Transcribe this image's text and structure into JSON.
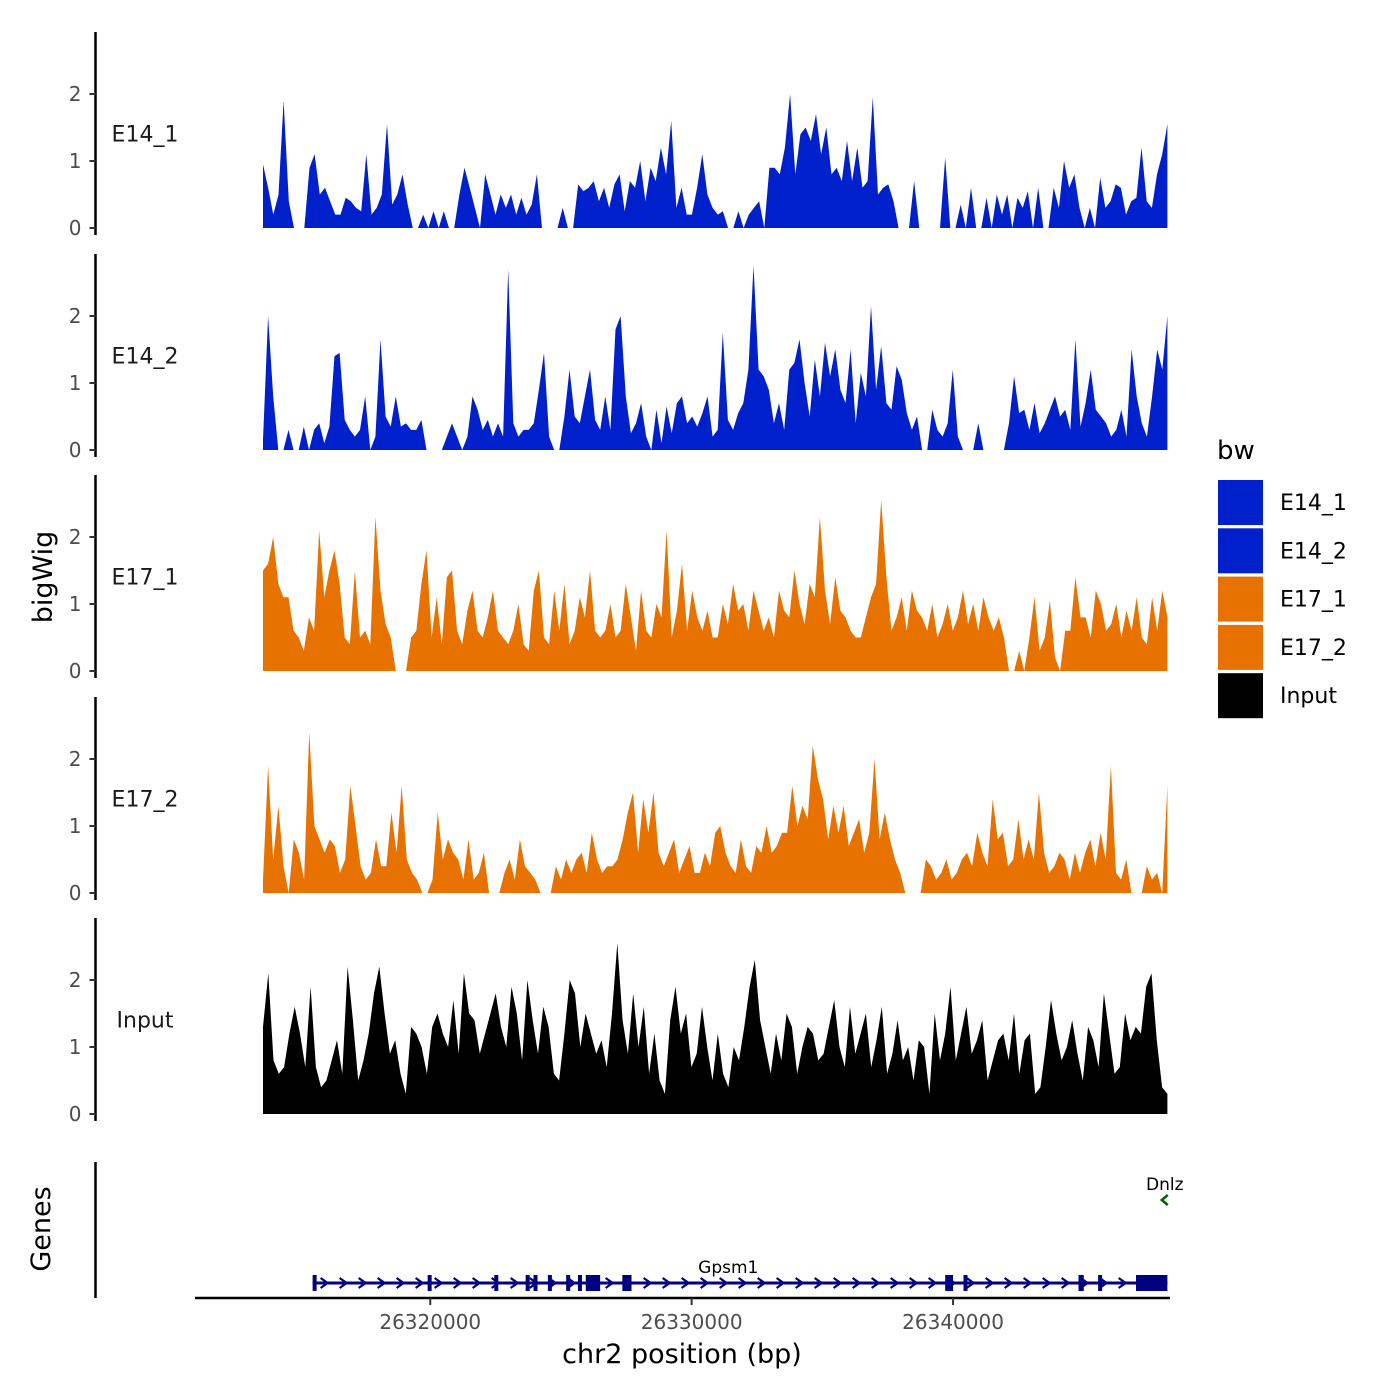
{
  "chart_data": {
    "type": "area",
    "chromosome": "chr2",
    "xlabel": "chr2 position (bp)",
    "ylabel": "bigWig",
    "genes_label": "Genes",
    "xlim": [
      26311000,
      26348300
    ],
    "data_range": [
      26313600,
      26348200
    ],
    "x_ticks": [
      26320000,
      26330000,
      26340000
    ],
    "x_tick_labels": [
      "26320000",
      "26330000",
      "26340000"
    ],
    "ylim": [
      0,
      3
    ],
    "y_ticks": [
      0,
      1,
      2
    ],
    "y_tick_labels": [
      "0",
      "1",
      "2"
    ],
    "legend": {
      "title": "bw",
      "position": "right",
      "entries": [
        {
          "label": "E14_1",
          "color": "#0020CC"
        },
        {
          "label": "E14_2",
          "color": "#0020CC"
        },
        {
          "label": "E17_1",
          "color": "#E87200"
        },
        {
          "label": "E17_2",
          "color": "#E87200"
        },
        {
          "label": "Input",
          "color": "#000000"
        }
      ]
    },
    "tracks": [
      {
        "name": "E14_1",
        "color": "#0020CC",
        "values": [
          0.95,
          0.6,
          0.2,
          0.5,
          1.9,
          0.4,
          0,
          0,
          0,
          0.9,
          1.1,
          0.5,
          0.6,
          0.4,
          0.2,
          0.2,
          0.45,
          0.4,
          0.3,
          0.25,
          1.1,
          0.2,
          0.3,
          0.5,
          1.55,
          0.35,
          0.5,
          0.8,
          0.35,
          0,
          0,
          0.2,
          0,
          0.25,
          0,
          0.25,
          0,
          0,
          0.5,
          0.9,
          0.6,
          0.3,
          0,
          0.8,
          0.5,
          0.2,
          0.5,
          0.3,
          0.5,
          0.2,
          0.45,
          0.2,
          0.35,
          0.8,
          0,
          0,
          0,
          0,
          0.3,
          0,
          0,
          0.65,
          0.55,
          0.6,
          0.7,
          0.4,
          0.6,
          0.3,
          0.65,
          0.8,
          0.25,
          0.7,
          0.6,
          1,
          0.4,
          0.9,
          0.7,
          1.2,
          0.8,
          1.6,
          0.3,
          0.6,
          0.2,
          0.2,
          0.6,
          1.1,
          0.5,
          0.3,
          0.2,
          0.25,
          0,
          0,
          0.25,
          0,
          0.2,
          0.3,
          0.4,
          0,
          0.9,
          0.9,
          0.8,
          1.2,
          2.0,
          0.8,
          1.4,
          1.5,
          1.3,
          1.7,
          1.1,
          1.5,
          0.8,
          0.9,
          0.7,
          1.3,
          0.7,
          1.2,
          0.6,
          0.7,
          1.95,
          0.5,
          0.6,
          0.65,
          0.4,
          0,
          0,
          0,
          0.7,
          0,
          0,
          0,
          0,
          0,
          1.05,
          0,
          0,
          0.35,
          0,
          0.6,
          0,
          0,
          0.45,
          0,
          0.5,
          0.2,
          0.5,
          0,
          0.45,
          0.3,
          0.55,
          0,
          0.6,
          0,
          0,
          0.6,
          0.3,
          1.0,
          0.6,
          0.8,
          0.3,
          0,
          0.3,
          0,
          0.75,
          0.3,
          0.4,
          0.65,
          0.6,
          0.2,
          0.4,
          0.45,
          1.2,
          0.4,
          0.3,
          0.8,
          1.1,
          1.55
        ]
      },
      {
        "name": "E14_2",
        "color": "#0020CC",
        "values": [
          0.15,
          2.0,
          0.8,
          0,
          0,
          0.3,
          0,
          0,
          0.35,
          0,
          0.3,
          0.4,
          0.1,
          0.35,
          1.4,
          1.45,
          0.45,
          0.3,
          0.2,
          0.3,
          0.8,
          0,
          0.2,
          1.65,
          0.5,
          0.35,
          0.8,
          0.35,
          0.4,
          0.3,
          0.3,
          0.45,
          0,
          0,
          0,
          0,
          0.2,
          0.4,
          0.2,
          0,
          0.2,
          0.8,
          0.6,
          0.3,
          0.45,
          0.2,
          0.4,
          0.2,
          2.7,
          0.4,
          0.2,
          0.3,
          0.3,
          0.4,
          0.9,
          1.45,
          0.2,
          0,
          0,
          0.5,
          1.2,
          0.5,
          0.4,
          0.8,
          1.2,
          0.45,
          0.3,
          0.8,
          0.3,
          1.8,
          2.0,
          0.8,
          0.25,
          0.4,
          0.7,
          0.2,
          0,
          0.6,
          0.1,
          0.65,
          0.25,
          0.7,
          0.8,
          0.4,
          0.5,
          0.35,
          0.55,
          0.8,
          0.2,
          0.3,
          1.75,
          0.45,
          0.3,
          0.55,
          0.7,
          1.2,
          2.75,
          1.2,
          1.1,
          0.9,
          0.4,
          0.7,
          0.3,
          1.2,
          1.3,
          1.65,
          1.0,
          0.5,
          1.35,
          0.8,
          1.6,
          1.1,
          1.5,
          0.9,
          0.7,
          1.5,
          0.4,
          1.15,
          0.8,
          2.15,
          0.9,
          1.55,
          0.7,
          0.6,
          1.25,
          1.05,
          0.55,
          0.3,
          0.5,
          0,
          0,
          0.6,
          0.3,
          0.2,
          0.4,
          1.2,
          0.2,
          0,
          0,
          0,
          0.4,
          0,
          0,
          0,
          0,
          0,
          0.4,
          1.1,
          0.55,
          0.6,
          0.3,
          0.7,
          0.25,
          0.4,
          0.6,
          0.8,
          0.5,
          0.6,
          0.3,
          1.65,
          0.35,
          0.7,
          1.2,
          0.6,
          0.5,
          0.4,
          0.2,
          0.3,
          0.6,
          0.2,
          1.5,
          0.8,
          0.4,
          0.2,
          0.8,
          1.5,
          1.2,
          2.0
        ]
      },
      {
        "name": "E17_1",
        "color": "#E87200",
        "values": [
          1.5,
          1.6,
          2.0,
          1.3,
          1.1,
          1.1,
          0.6,
          0.5,
          0.3,
          0.8,
          0.6,
          2.1,
          1.1,
          1.5,
          1.8,
          1.3,
          0.5,
          0.4,
          1.5,
          0.5,
          0.6,
          0.4,
          2.3,
          1.2,
          0.7,
          0.5,
          0,
          0,
          0,
          0.5,
          0.6,
          1.3,
          1.8,
          0.5,
          1.1,
          0.4,
          1.4,
          1.5,
          0.6,
          0.4,
          0.9,
          1.2,
          0.6,
          0.5,
          0.8,
          1.2,
          0.6,
          0.5,
          0.4,
          0.6,
          1.0,
          0.4,
          0.3,
          1.2,
          1.5,
          0.5,
          0.4,
          1.2,
          0.6,
          1.3,
          0.4,
          0.6,
          1.1,
          0.8,
          1.5,
          0.6,
          0.5,
          0.6,
          1.0,
          0.5,
          0.6,
          1.3,
          0.8,
          0.3,
          1.2,
          0.6,
          0.5,
          1.0,
          0.8,
          2.1,
          0.5,
          0.9,
          1.6,
          0.6,
          1.2,
          0.8,
          0.6,
          0.9,
          0.5,
          0.5,
          1.0,
          0.7,
          1.3,
          0.9,
          1.0,
          0.6,
          1.2,
          0.9,
          0.6,
          0.8,
          0.5,
          1.2,
          0.9,
          0.8,
          1.5,
          1.0,
          0.7,
          1.3,
          1.1,
          2.3,
          1.2,
          0.7,
          1.4,
          0.9,
          0.8,
          0.6,
          0.5,
          0.5,
          0.8,
          1.1,
          1.3,
          2.55,
          1.4,
          0.6,
          0.8,
          1.1,
          0.6,
          1.2,
          0.9,
          0.8,
          0.6,
          1.0,
          0.5,
          0.7,
          1.0,
          0.6,
          0.8,
          1.2,
          0.7,
          1.0,
          0.6,
          1.1,
          0.8,
          0.6,
          0.8,
          0.5,
          0,
          0,
          0.3,
          0,
          0.5,
          1.1,
          0.3,
          0.5,
          1.05,
          0.2,
          0,
          0.6,
          0.6,
          1.4,
          0.8,
          0.8,
          0.5,
          1.2,
          1.0,
          0.6,
          0.7,
          1.0,
          0.5,
          0.9,
          0.6,
          1.1,
          0.5,
          0.4,
          1.1,
          0.6,
          1.2,
          0.8
        ]
      },
      {
        "name": "E17_2",
        "color": "#E87200",
        "values": [
          0.2,
          1.9,
          0.5,
          1.3,
          0.4,
          0,
          0.8,
          0.6,
          0.2,
          2.4,
          1.0,
          0.8,
          0.6,
          0.8,
          0.7,
          0.3,
          0.5,
          1.6,
          1.0,
          0.4,
          0.2,
          0.3,
          0.8,
          0.4,
          0.4,
          1.2,
          0.6,
          1.6,
          0.5,
          0.3,
          0.2,
          0,
          0,
          0.2,
          1.2,
          0.5,
          0.8,
          0.6,
          0.5,
          0.2,
          0.8,
          0.2,
          0.3,
          0.6,
          0,
          0,
          0,
          0.3,
          0.5,
          0.2,
          0.8,
          0.4,
          0.3,
          0.2,
          0,
          0,
          0,
          0.4,
          0.2,
          0.5,
          0.3,
          0.5,
          0.6,
          0.3,
          0.9,
          0.5,
          0.3,
          0.4,
          0.4,
          0.5,
          0.8,
          1.2,
          1.5,
          0.6,
          1.4,
          0.9,
          1.5,
          0.6,
          0.4,
          0.6,
          0.8,
          0.3,
          0.5,
          0.7,
          0.3,
          0.3,
          0.6,
          0.4,
          0.9,
          1.0,
          0.6,
          0.4,
          0.3,
          0.8,
          0.4,
          0.3,
          0.7,
          0.6,
          1.0,
          0.6,
          0.7,
          0.9,
          0.9,
          1.6,
          1.0,
          1.3,
          1.1,
          2.2,
          1.7,
          1.4,
          0.8,
          1.3,
          0.9,
          1.3,
          0.7,
          0.9,
          1.1,
          0.6,
          0.9,
          2.0,
          0.8,
          1.2,
          0.8,
          0.5,
          0.3,
          0,
          0,
          0,
          0,
          0.5,
          0.4,
          0.2,
          0.3,
          0.5,
          0.2,
          0.3,
          0.5,
          0.6,
          0.4,
          0.9,
          0.6,
          0.4,
          1.4,
          0.8,
          0.9,
          0.4,
          0.5,
          1.1,
          0.5,
          0.8,
          0.5,
          1.5,
          0.6,
          0.3,
          0.4,
          0.6,
          0.5,
          0.2,
          0.6,
          0.3,
          0.6,
          0.8,
          0.4,
          0.9,
          0.5,
          1.9,
          0.3,
          0.2,
          0.5,
          0,
          0,
          0,
          0.4,
          0.2,
          0.3,
          0,
          1.6
        ]
      },
      {
        "name": "Input",
        "color": "#000000",
        "values": [
          1.3,
          2.1,
          0.8,
          0.6,
          0.7,
          1.2,
          1.6,
          1.2,
          0.7,
          1.9,
          0.7,
          0.4,
          0.5,
          0.8,
          1.1,
          0.6,
          2.2,
          1.4,
          0.5,
          0.8,
          1.2,
          1.8,
          2.2,
          1.5,
          0.9,
          1.1,
          0.6,
          0.3,
          1.3,
          1.2,
          1.0,
          0.6,
          1.3,
          1.5,
          1.2,
          1.0,
          1.7,
          0.9,
          2.1,
          1.5,
          1.4,
          0.9,
          1.2,
          1.5,
          1.8,
          1.3,
          1.0,
          1.9,
          1.5,
          0.8,
          2.0,
          1.4,
          0.9,
          1.6,
          1.3,
          0.6,
          0.5,
          1.2,
          2.0,
          1.8,
          1.0,
          1.5,
          1.2,
          0.9,
          1.1,
          0.7,
          1.5,
          2.55,
          1.4,
          0.9,
          1.8,
          1.0,
          1.6,
          0.6,
          1.2,
          0.5,
          0.3,
          1.4,
          1.9,
          1.2,
          1.5,
          0.7,
          0.9,
          1.6,
          1.0,
          0.5,
          1.2,
          0.6,
          0.4,
          1.0,
          0.8,
          1.3,
          1.9,
          2.3,
          1.4,
          1.0,
          0.6,
          1.2,
          0.8,
          1.5,
          1.3,
          0.6,
          1.0,
          1.3,
          1.2,
          0.8,
          0.9,
          1.3,
          1.7,
          1.0,
          0.7,
          1.6,
          0.9,
          1.2,
          1.5,
          0.7,
          1.1,
          1.6,
          0.6,
          0.9,
          1.4,
          0.8,
          1.0,
          0.5,
          1.1,
          1.0,
          0.3,
          1.5,
          0.8,
          1.2,
          1.9,
          0.8,
          1.2,
          1.6,
          0.9,
          1.1,
          1.4,
          0.5,
          0.8,
          1.1,
          1.2,
          0.8,
          1.5,
          0.6,
          1.1,
          1.2,
          0.3,
          0.4,
          1.0,
          1.7,
          1.2,
          0.8,
          1.0,
          1.4,
          0.9,
          0.5,
          1.3,
          1.1,
          0.7,
          1.8,
          1.2,
          0.6,
          0.7,
          1.5,
          1.1,
          1.3,
          1.2,
          1.9,
          2.1,
          1.1,
          0.4,
          0.3
        ]
      }
    ],
    "genes": [
      {
        "name": "Gpsm1",
        "color": "#000080",
        "strand": "+",
        "row": "lower",
        "start": 26315500,
        "end": 26348200,
        "exons": [
          [
            26315500,
            26315650
          ],
          [
            26319900,
            26320050
          ],
          [
            26322450,
            26322600
          ],
          [
            26323650,
            26323800
          ],
          [
            26323950,
            26324100
          ],
          [
            26324500,
            26324650
          ],
          [
            26325200,
            26325350
          ],
          [
            26325650,
            26325800
          ],
          [
            26325950,
            26326500
          ],
          [
            26327350,
            26327700
          ],
          [
            26339700,
            26340000
          ],
          [
            26340400,
            26340550
          ],
          [
            26344800,
            26345000
          ],
          [
            26345550,
            26345700
          ],
          [
            26347000,
            26348200
          ]
        ]
      },
      {
        "name": "Dnlz",
        "color": "#006400",
        "strand": "-",
        "row": "upper",
        "start": 26348000,
        "end": 26348200,
        "exons": []
      }
    ]
  }
}
